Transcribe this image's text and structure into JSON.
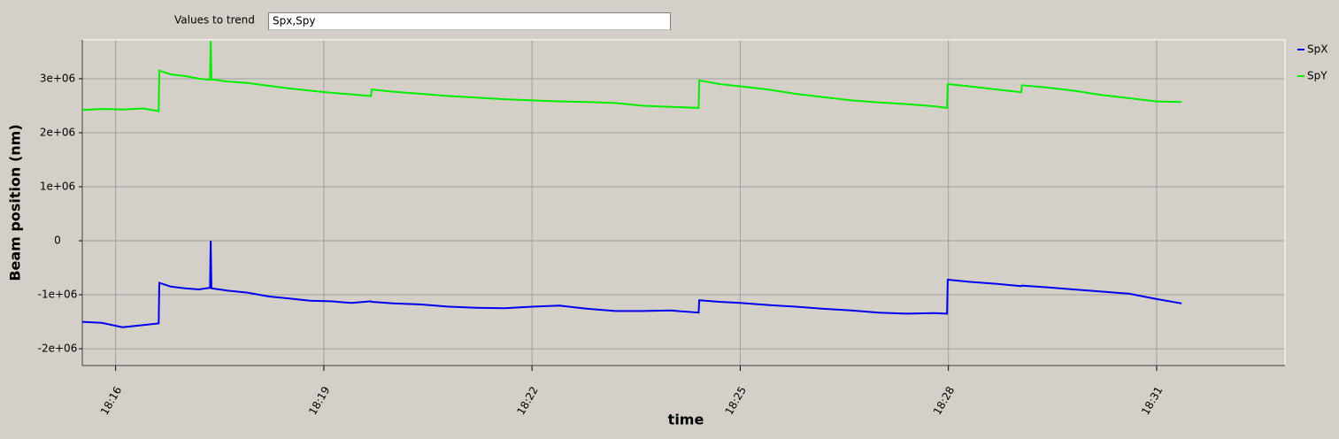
{
  "trend_input": {
    "label": "Values to trend",
    "value": "Spx,Spy"
  },
  "chart_data": {
    "type": "line",
    "x_label": "time",
    "y_label": "Beam position (nm)",
    "x": [
      1095.52,
      1095.8,
      1096.1,
      1096.4,
      1096.62,
      1096.63,
      1096.8,
      1097.0,
      1097.2,
      1097.36,
      1097.37,
      1097.38,
      1097.6,
      1097.9,
      1098.2,
      1098.5,
      1098.8,
      1099.1,
      1099.4,
      1099.68,
      1099.69,
      1100.0,
      1100.4,
      1100.8,
      1101.2,
      1101.6,
      1102.0,
      1102.4,
      1102.8,
      1103.2,
      1103.6,
      1104.0,
      1104.4,
      1104.41,
      1104.7,
      1105.0,
      1105.4,
      1105.8,
      1106.2,
      1106.6,
      1107.0,
      1107.4,
      1107.8,
      1107.98,
      1107.99,
      1108.3,
      1108.7,
      1109.05,
      1109.06,
      1109.4,
      1109.8,
      1110.2,
      1110.6,
      1111.0,
      1111.36
    ],
    "series": [
      {
        "name": "SpX",
        "color": "#0000ee",
        "values": [
          -1500000,
          -1520000,
          -1600000,
          -1560000,
          -1530000,
          -780000,
          -850000,
          -880000,
          -900000,
          -870000,
          0,
          -880000,
          -920000,
          -960000,
          -1030000,
          -1070000,
          -1110000,
          -1120000,
          -1150000,
          -1120000,
          -1130000,
          -1160000,
          -1180000,
          -1220000,
          -1240000,
          -1250000,
          -1220000,
          -1200000,
          -1260000,
          -1300000,
          -1300000,
          -1290000,
          -1330000,
          -1100000,
          -1130000,
          -1150000,
          -1190000,
          -1220000,
          -1260000,
          -1290000,
          -1330000,
          -1350000,
          -1340000,
          -1350000,
          -720000,
          -760000,
          -800000,
          -840000,
          -830000,
          -860000,
          -900000,
          -940000,
          -980000,
          -1080000,
          -1160000
        ]
      },
      {
        "name": "SpY",
        "color": "#00ee00",
        "values": [
          2420000,
          2440000,
          2430000,
          2450000,
          2400000,
          3150000,
          3080000,
          3050000,
          3000000,
          2980000,
          3700000,
          2990000,
          2950000,
          2920000,
          2870000,
          2820000,
          2780000,
          2740000,
          2710000,
          2680000,
          2800000,
          2760000,
          2720000,
          2680000,
          2650000,
          2620000,
          2600000,
          2580000,
          2570000,
          2550000,
          2500000,
          2480000,
          2460000,
          2970000,
          2900000,
          2860000,
          2800000,
          2720000,
          2660000,
          2600000,
          2560000,
          2530000,
          2490000,
          2460000,
          2900000,
          2860000,
          2800000,
          2750000,
          2880000,
          2840000,
          2780000,
          2700000,
          2640000,
          2580000,
          2570000
        ]
      }
    ],
    "xlim": [
      1095.52,
      1112.85
    ],
    "xticks": [
      {
        "value": 1096,
        "label": "18:16"
      },
      {
        "value": 1099,
        "label": "18:19"
      },
      {
        "value": 1102,
        "label": "18:22"
      },
      {
        "value": 1105,
        "label": "18:25"
      },
      {
        "value": 1108,
        "label": "18:28"
      },
      {
        "value": 1111,
        "label": "18:31"
      }
    ],
    "ylim": [
      -2310000,
      3720000
    ],
    "yticks": [
      {
        "value": -2000000,
        "label": "-2e+06"
      },
      {
        "value": -1000000,
        "label": "-1e+06"
      },
      0,
      {
        "value": 1000000,
        "label": "1e+06"
      },
      {
        "value": 2000000,
        "label": "2e+06"
      },
      {
        "value": 3000000,
        "label": "3e+06"
      }
    ],
    "grid": true,
    "legend": "right"
  }
}
